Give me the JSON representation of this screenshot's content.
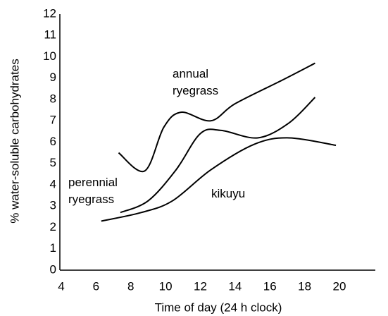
{
  "chart_data": {
    "type": "line",
    "xlabel": "Time of day (24 h clock)",
    "ylabel": "% water-soluble carbohydrates",
    "xlim": [
      4,
      20
    ],
    "xticks": [
      4,
      6,
      8,
      10,
      12,
      14,
      16,
      18,
      20
    ],
    "ylim": [
      0,
      12
    ],
    "yticks": [
      0,
      1,
      2,
      3,
      4,
      5,
      6,
      7,
      8,
      9,
      10,
      11,
      12
    ],
    "grid": false,
    "legend": false,
    "series": [
      {
        "name": "annual ryegrass",
        "color": "#000000",
        "x": [
          7.3,
          8.8,
          9.9,
          10.9,
          12.6,
          14.0,
          16.7,
          18.6
        ],
        "values": [
          5.5,
          4.65,
          6.7,
          7.4,
          7.0,
          7.8,
          8.9,
          9.7
        ]
      },
      {
        "name": "perennial ryegrass",
        "color": "#000000",
        "x": [
          7.4,
          9.0,
          10.6,
          12.0,
          13.2,
          15.3,
          17.1,
          18.6
        ],
        "values": [
          2.7,
          3.25,
          4.7,
          6.4,
          6.55,
          6.2,
          6.9,
          8.1
        ]
      },
      {
        "name": "kikuyu",
        "color": "#000000",
        "x": [
          6.3,
          8.6,
          10.4,
          12.6,
          15.1,
          17.1,
          19.8
        ],
        "values": [
          2.3,
          2.7,
          3.25,
          4.7,
          5.9,
          6.2,
          5.85
        ]
      }
    ]
  }
}
